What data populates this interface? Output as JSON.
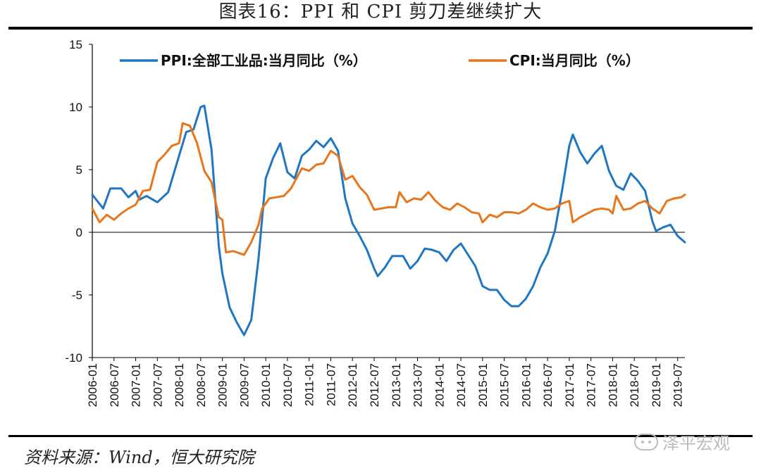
{
  "header": {
    "title": "图表16：PPI 和 CPI 剪刀差继续扩大"
  },
  "footer": {
    "source": "资料来源：Wind，恒大研究院",
    "watermark": "泽平宏观"
  },
  "chart_data": {
    "type": "line",
    "ylim": [
      -10,
      15
    ],
    "yticks": [
      -10,
      -5,
      0,
      5,
      10,
      15
    ],
    "ytick_labels": [
      "-10",
      "-5",
      "0",
      "5",
      "10",
      "15"
    ],
    "xlim": [
      "2006-01",
      "2019-09"
    ],
    "xtick_labels": [
      "2006-01",
      "2006-07",
      "2007-01",
      "2007-07",
      "2008-01",
      "2008-07",
      "2009-01",
      "2009-07",
      "2010-01",
      "2010-07",
      "2011-01",
      "2011-07",
      "2012-01",
      "2012-07",
      "2013-01",
      "2013-07",
      "2014-01",
      "2014-07",
      "2015-01",
      "2015-07",
      "2016-01",
      "2016-07",
      "2017-01",
      "2017-07",
      "2018-01",
      "2018-07",
      "2019-01",
      "2019-07"
    ],
    "legend_position": "top",
    "series": [
      {
        "name": "PPI:全部工业品:当月同比（%）",
        "color": "#1f77c4",
        "points": [
          [
            "2006-01",
            3.0
          ],
          [
            "2006-04",
            1.9
          ],
          [
            "2006-06",
            3.5
          ],
          [
            "2006-09",
            3.5
          ],
          [
            "2006-11",
            2.8
          ],
          [
            "2007-01",
            3.3
          ],
          [
            "2007-02",
            2.6
          ],
          [
            "2007-04",
            2.9
          ],
          [
            "2007-07",
            2.4
          ],
          [
            "2007-10",
            3.2
          ],
          [
            "2008-01",
            6.1
          ],
          [
            "2008-03",
            8.0
          ],
          [
            "2008-05",
            8.2
          ],
          [
            "2008-07",
            10.0
          ],
          [
            "2008-08",
            10.1
          ],
          [
            "2008-10",
            6.6
          ],
          [
            "2008-12",
            -1.1
          ],
          [
            "2009-01",
            -3.3
          ],
          [
            "2009-03",
            -6.0
          ],
          [
            "2009-05",
            -7.2
          ],
          [
            "2009-07",
            -8.2
          ],
          [
            "2009-09",
            -7.0
          ],
          [
            "2009-11",
            -2.1
          ],
          [
            "2010-01",
            4.3
          ],
          [
            "2010-03",
            5.9
          ],
          [
            "2010-05",
            7.1
          ],
          [
            "2010-07",
            4.8
          ],
          [
            "2010-09",
            4.3
          ],
          [
            "2010-11",
            6.1
          ],
          [
            "2011-01",
            6.6
          ],
          [
            "2011-03",
            7.3
          ],
          [
            "2011-05",
            6.8
          ],
          [
            "2011-07",
            7.5
          ],
          [
            "2011-09",
            6.5
          ],
          [
            "2011-11",
            2.7
          ],
          [
            "2012-01",
            0.7
          ],
          [
            "2012-03",
            -0.3
          ],
          [
            "2012-05",
            -1.4
          ],
          [
            "2012-07",
            -2.9
          ],
          [
            "2012-08",
            -3.5
          ],
          [
            "2012-10",
            -2.8
          ],
          [
            "2012-12",
            -1.9
          ],
          [
            "2013-03",
            -1.9
          ],
          [
            "2013-05",
            -2.9
          ],
          [
            "2013-07",
            -2.3
          ],
          [
            "2013-09",
            -1.3
          ],
          [
            "2013-11",
            -1.4
          ],
          [
            "2014-01",
            -1.6
          ],
          [
            "2014-03",
            -2.3
          ],
          [
            "2014-05",
            -1.4
          ],
          [
            "2014-07",
            -0.9
          ],
          [
            "2014-09",
            -1.8
          ],
          [
            "2014-11",
            -2.7
          ],
          [
            "2015-01",
            -4.3
          ],
          [
            "2015-03",
            -4.6
          ],
          [
            "2015-05",
            -4.6
          ],
          [
            "2015-07",
            -5.4
          ],
          [
            "2015-09",
            -5.9
          ],
          [
            "2015-11",
            -5.9
          ],
          [
            "2016-01",
            -5.3
          ],
          [
            "2016-03",
            -4.3
          ],
          [
            "2016-05",
            -2.8
          ],
          [
            "2016-07",
            -1.7
          ],
          [
            "2016-09",
            0.1
          ],
          [
            "2016-11",
            3.3
          ],
          [
            "2017-01",
            6.9
          ],
          [
            "2017-02",
            7.8
          ],
          [
            "2017-04",
            6.4
          ],
          [
            "2017-06",
            5.5
          ],
          [
            "2017-08",
            6.3
          ],
          [
            "2017-10",
            6.9
          ],
          [
            "2017-12",
            4.9
          ],
          [
            "2018-02",
            3.7
          ],
          [
            "2018-04",
            3.4
          ],
          [
            "2018-06",
            4.7
          ],
          [
            "2018-08",
            4.1
          ],
          [
            "2018-10",
            3.3
          ],
          [
            "2018-12",
            0.9
          ],
          [
            "2019-01",
            0.1
          ],
          [
            "2019-03",
            0.4
          ],
          [
            "2019-05",
            0.6
          ],
          [
            "2019-07",
            -0.3
          ],
          [
            "2019-09",
            -0.8
          ]
        ]
      },
      {
        "name": "CPI:当月同比（%）",
        "color": "#e8761c",
        "points": [
          [
            "2006-01",
            1.9
          ],
          [
            "2006-03",
            0.8
          ],
          [
            "2006-05",
            1.4
          ],
          [
            "2006-07",
            1.0
          ],
          [
            "2006-09",
            1.5
          ],
          [
            "2006-11",
            1.9
          ],
          [
            "2007-01",
            2.2
          ],
          [
            "2007-03",
            3.3
          ],
          [
            "2007-05",
            3.4
          ],
          [
            "2007-07",
            5.6
          ],
          [
            "2007-09",
            6.2
          ],
          [
            "2007-11",
            6.9
          ],
          [
            "2008-01",
            7.1
          ],
          [
            "2008-02",
            8.7
          ],
          [
            "2008-04",
            8.5
          ],
          [
            "2008-06",
            7.1
          ],
          [
            "2008-08",
            4.9
          ],
          [
            "2008-10",
            4.0
          ],
          [
            "2008-12",
            1.2
          ],
          [
            "2009-01",
            1.0
          ],
          [
            "2009-02",
            -1.6
          ],
          [
            "2009-04",
            -1.5
          ],
          [
            "2009-06",
            -1.7
          ],
          [
            "2009-07",
            -1.8
          ],
          [
            "2009-09",
            -0.8
          ],
          [
            "2009-11",
            0.6
          ],
          [
            "2009-12",
            1.9
          ],
          [
            "2010-02",
            2.7
          ],
          [
            "2010-04",
            2.8
          ],
          [
            "2010-06",
            2.9
          ],
          [
            "2010-08",
            3.5
          ],
          [
            "2010-11",
            5.1
          ],
          [
            "2011-01",
            4.9
          ],
          [
            "2011-03",
            5.4
          ],
          [
            "2011-05",
            5.5
          ],
          [
            "2011-07",
            6.5
          ],
          [
            "2011-09",
            6.1
          ],
          [
            "2011-11",
            4.2
          ],
          [
            "2012-01",
            4.5
          ],
          [
            "2012-03",
            3.6
          ],
          [
            "2012-05",
            3.0
          ],
          [
            "2012-07",
            1.8
          ],
          [
            "2012-09",
            1.9
          ],
          [
            "2012-11",
            2.0
          ],
          [
            "2013-01",
            2.0
          ],
          [
            "2013-02",
            3.2
          ],
          [
            "2013-04",
            2.4
          ],
          [
            "2013-06",
            2.7
          ],
          [
            "2013-08",
            2.6
          ],
          [
            "2013-10",
            3.2
          ],
          [
            "2013-12",
            2.5
          ],
          [
            "2014-02",
            2.0
          ],
          [
            "2014-04",
            1.8
          ],
          [
            "2014-06",
            2.3
          ],
          [
            "2014-08",
            2.0
          ],
          [
            "2014-10",
            1.6
          ],
          [
            "2014-12",
            1.5
          ],
          [
            "2015-01",
            0.8
          ],
          [
            "2015-03",
            1.4
          ],
          [
            "2015-05",
            1.2
          ],
          [
            "2015-07",
            1.6
          ],
          [
            "2015-09",
            1.6
          ],
          [
            "2015-11",
            1.5
          ],
          [
            "2016-01",
            1.8
          ],
          [
            "2016-03",
            2.3
          ],
          [
            "2016-05",
            2.0
          ],
          [
            "2016-07",
            1.8
          ],
          [
            "2016-09",
            1.9
          ],
          [
            "2016-11",
            2.3
          ],
          [
            "2017-01",
            2.5
          ],
          [
            "2017-02",
            0.8
          ],
          [
            "2017-04",
            1.2
          ],
          [
            "2017-06",
            1.5
          ],
          [
            "2017-08",
            1.8
          ],
          [
            "2017-10",
            1.9
          ],
          [
            "2017-12",
            1.8
          ],
          [
            "2018-01",
            1.5
          ],
          [
            "2018-02",
            2.9
          ],
          [
            "2018-04",
            1.8
          ],
          [
            "2018-06",
            1.9
          ],
          [
            "2018-08",
            2.3
          ],
          [
            "2018-10",
            2.5
          ],
          [
            "2018-12",
            1.9
          ],
          [
            "2019-01",
            1.7
          ],
          [
            "2019-02",
            1.5
          ],
          [
            "2019-04",
            2.5
          ],
          [
            "2019-06",
            2.7
          ],
          [
            "2019-08",
            2.8
          ],
          [
            "2019-09",
            3.0
          ]
        ]
      }
    ]
  }
}
